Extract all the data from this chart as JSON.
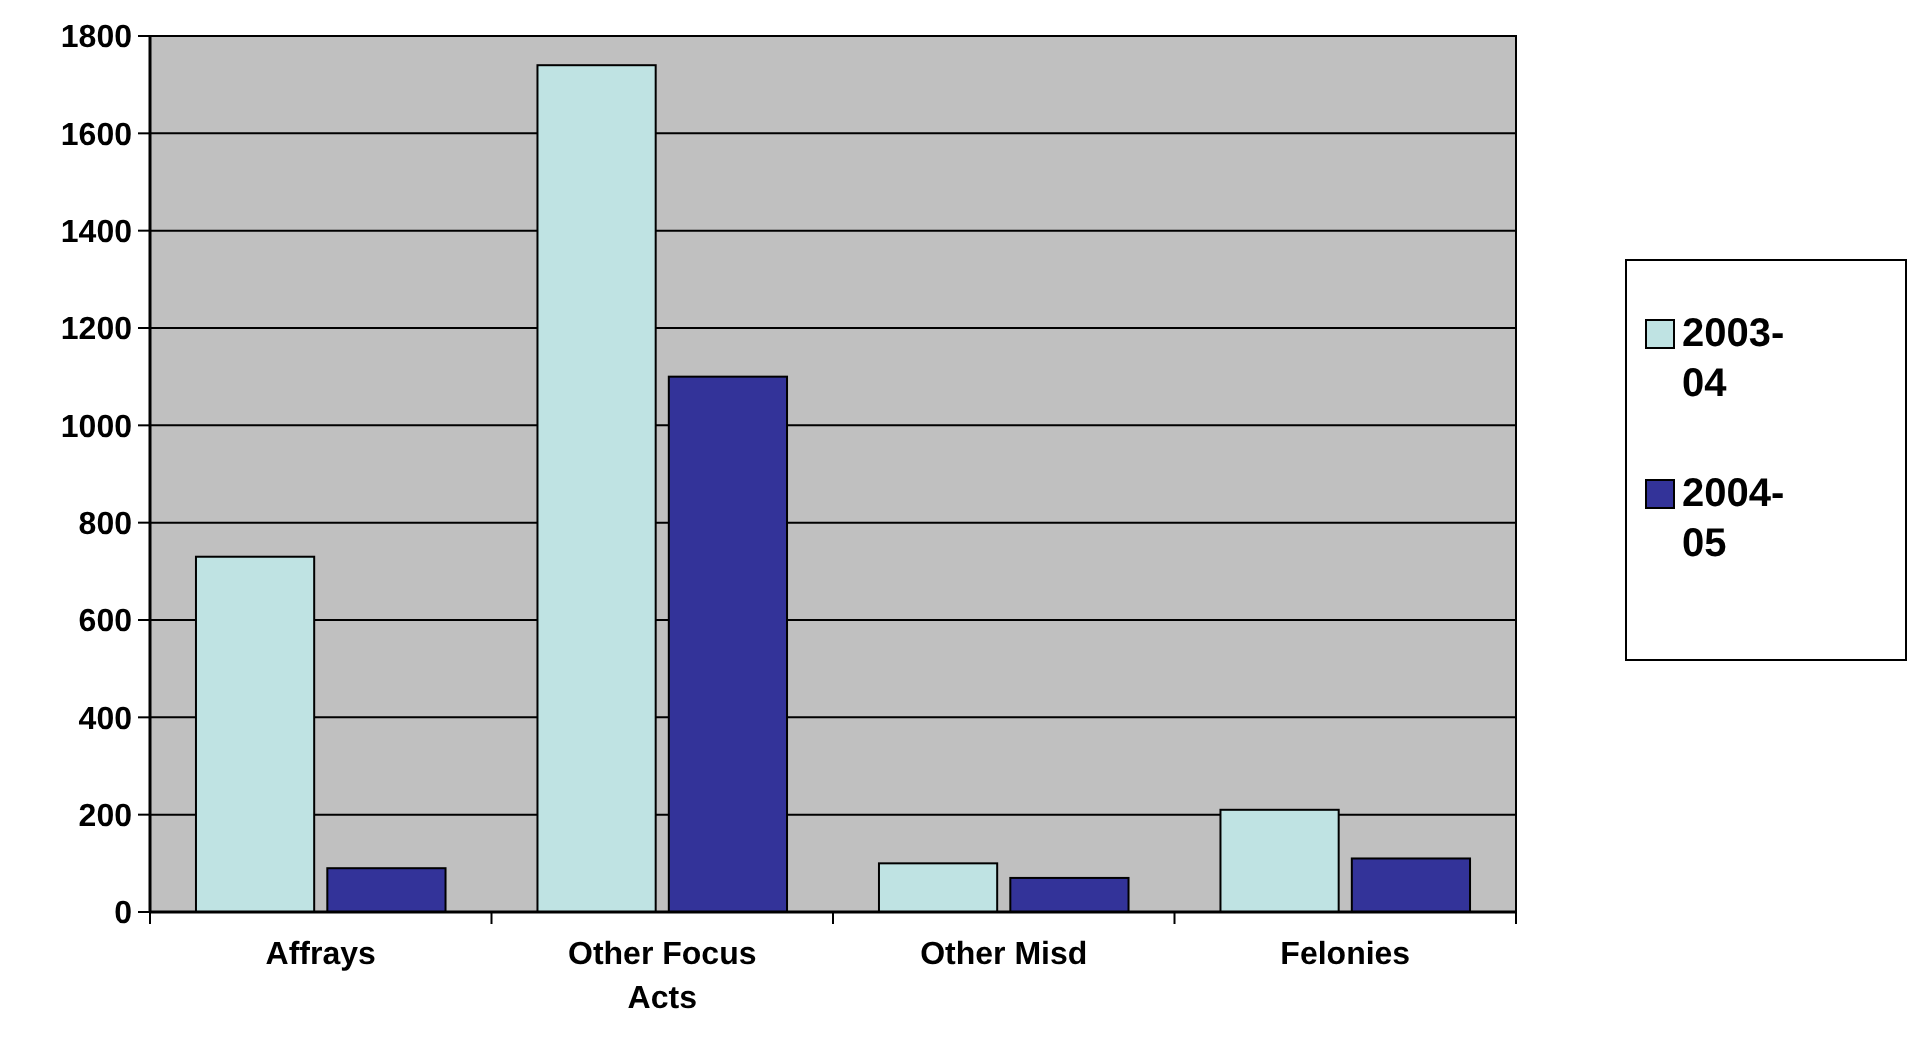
{
  "chart_data": {
    "type": "bar",
    "categories": [
      "Affrays",
      "Other Focus Acts",
      "Other Misd",
      "Felonies"
    ],
    "series": [
      {
        "name": "2003-04",
        "color": "#bfe3e3",
        "values": [
          730,
          1740,
          100,
          210
        ]
      },
      {
        "name": "2004-05",
        "color": "#333399",
        "values": [
          90,
          1100,
          70,
          110
        ]
      }
    ],
    "ylim": [
      0,
      1800
    ],
    "yticks": [
      0,
      200,
      400,
      600,
      800,
      1000,
      1200,
      1400,
      1600,
      1800
    ],
    "grid": "y",
    "legend": "right"
  }
}
